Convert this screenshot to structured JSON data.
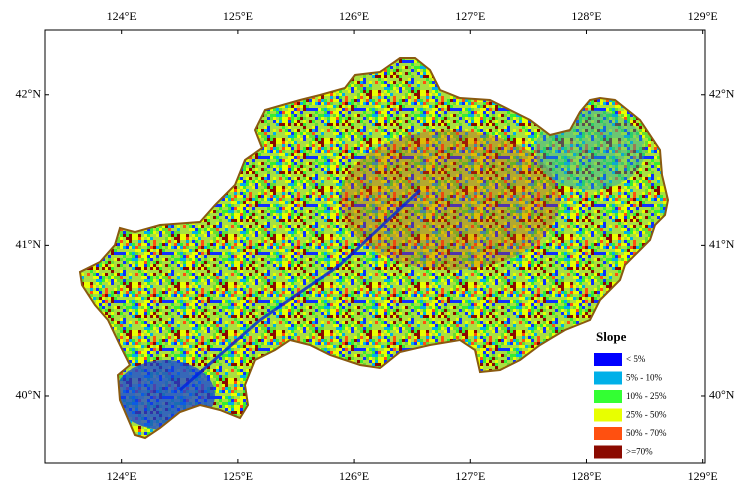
{
  "map": {
    "xlim": [
      123.34,
      129.02
    ],
    "ylim": [
      39.555,
      42.43
    ],
    "xticks": [
      {
        "value": 124,
        "label": "124°E"
      },
      {
        "value": 125,
        "label": "125°E"
      },
      {
        "value": 126,
        "label": "126°E"
      },
      {
        "value": 127,
        "label": "127°E"
      },
      {
        "value": 128,
        "label": "128°E"
      },
      {
        "value": 129,
        "label": "129°E"
      }
    ],
    "yticks": [
      {
        "value": 40,
        "label": "40°N"
      },
      {
        "value": 41,
        "label": "41°N"
      },
      {
        "value": 42,
        "label": "42°N"
      }
    ],
    "legend": {
      "title": "Slope",
      "items": [
        {
          "label": "< 5%",
          "color": "#0000ff"
        },
        {
          "label": "5% - 10%",
          "color": "#00b0e8"
        },
        {
          "label": "10% - 25%",
          "color": "#33ff33"
        },
        {
          "label": "25% - 50%",
          "color": "#e8ff00"
        },
        {
          "label": "50% - 70%",
          "color": "#ff5010"
        },
        {
          "label": ">=70%",
          "color": "#8b0a00"
        }
      ]
    }
  }
}
